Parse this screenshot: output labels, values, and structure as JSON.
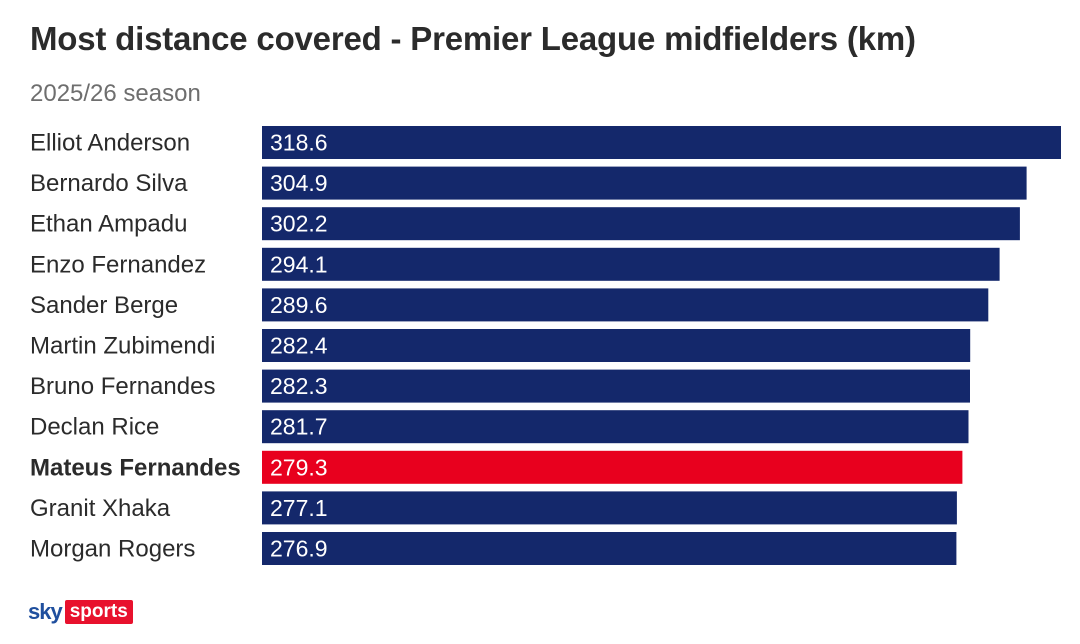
{
  "chart_data": {
    "type": "bar",
    "orientation": "horizontal",
    "title": "Most distance covered - Premier League midfielders (km)",
    "subtitle": "2025/26 season",
    "xlabel": "",
    "ylabel": "",
    "grid": false,
    "categories": [
      "Elliot Anderson",
      "Bernardo Silva",
      "Ethan Ampadu",
      "Enzo Fernandez",
      "Sander Berge",
      "Martin Zubimendi",
      "Bruno Fernandes",
      "Declan Rice",
      "Mateus Fernandes",
      "Granit Xhaka",
      "Morgan Rogers"
    ],
    "values": [
      318.6,
      304.9,
      302.2,
      294.1,
      289.6,
      282.4,
      282.3,
      281.7,
      279.3,
      277.1,
      276.9
    ],
    "value_labels": [
      "318.6",
      "304.9",
      "302.2",
      "294.1",
      "289.6",
      "282.4",
      "282.3",
      "281.7",
      "279.3",
      "277.1",
      "276.9"
    ],
    "highlight": "Mateus Fernandes",
    "colors": {
      "bar": "#14286b",
      "highlight": "#e8001e"
    }
  },
  "logo": {
    "sky": "sky",
    "sports": "sports"
  }
}
